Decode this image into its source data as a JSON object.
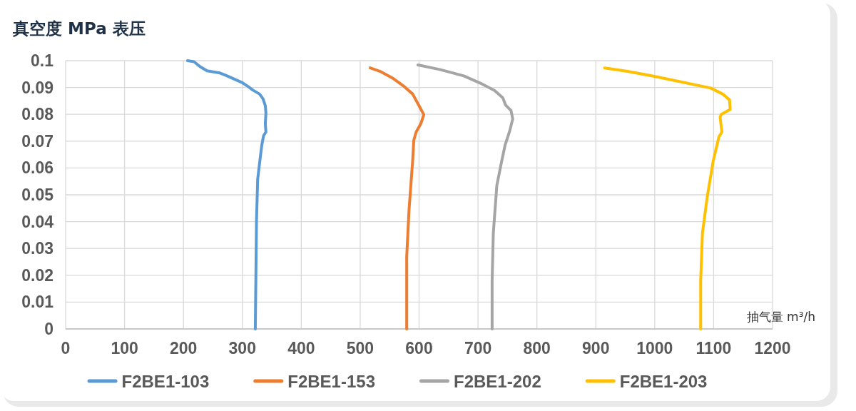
{
  "chart_data": {
    "type": "line",
    "ylabel": "真空度 MPa 表压",
    "xlabel": "抽气量 m³/h",
    "xlim": [
      0,
      1200
    ],
    "xticks": [
      0,
      100,
      200,
      300,
      400,
      500,
      600,
      700,
      800,
      900,
      1000,
      1100,
      1200
    ],
    "ylim": [
      0,
      0.1
    ],
    "yticks": [
      0,
      0.01,
      0.02,
      0.03,
      0.04,
      0.05,
      0.06,
      0.07,
      0.08,
      0.09,
      0.1
    ],
    "grid": true,
    "legend": "bottom",
    "marker": "none",
    "line_style": "solid",
    "series": [
      {
        "name": "F2BE1-103",
        "color": "#5b9bd5",
        "x": [
          207,
          218,
          228,
          240,
          262,
          272,
          300,
          310,
          318,
          329,
          335,
          339,
          340,
          339,
          340,
          336,
          333,
          329,
          326,
          324,
          322
        ],
        "values": [
          0.1,
          0.0996,
          0.0978,
          0.0962,
          0.0954,
          0.0945,
          0.0918,
          0.0903,
          0.089,
          0.0876,
          0.0858,
          0.0832,
          0.0805,
          0.0765,
          0.0734,
          0.072,
          0.0685,
          0.0614,
          0.0557,
          0.0404,
          0
        ]
      },
      {
        "name": "F2BE1-153",
        "color": "#ed7d31",
        "x": [
          517,
          534,
          555,
          575,
          589,
          599,
          608,
          603,
          595,
          591,
          589,
          583,
          579,
          579
        ],
        "values": [
          0.0973,
          0.096,
          0.0935,
          0.0903,
          0.0876,
          0.0836,
          0.0799,
          0.0765,
          0.0734,
          0.0703,
          0.0623,
          0.0446,
          0.0269,
          0
        ]
      },
      {
        "name": "F2BE1-202",
        "color": "#a5a5a5",
        "x": [
          598,
          635,
          676,
          704,
          728,
          742,
          747,
          756,
          759,
          754,
          746,
          740,
          732,
          726,
          724,
          724
        ],
        "values": [
          0.0984,
          0.0967,
          0.0943,
          0.0916,
          0.0889,
          0.0862,
          0.0834,
          0.0814,
          0.0783,
          0.0739,
          0.0685,
          0.0623,
          0.0535,
          0.0357,
          0.018,
          0
        ]
      },
      {
        "name": "F2BE1-203",
        "color": "#ffc000",
        "x": [
          915,
          954,
          998,
          1095,
          1115,
          1127,
          1128,
          1113,
          1111,
          1114,
          1109,
          1099,
          1089,
          1081,
          1078,
          1078
        ],
        "values": [
          0.0973,
          0.096,
          0.0942,
          0.0898,
          0.0876,
          0.0854,
          0.0818,
          0.08,
          0.079,
          0.0734,
          0.0716,
          0.0623,
          0.049,
          0.0357,
          0.018,
          0
        ]
      }
    ]
  }
}
